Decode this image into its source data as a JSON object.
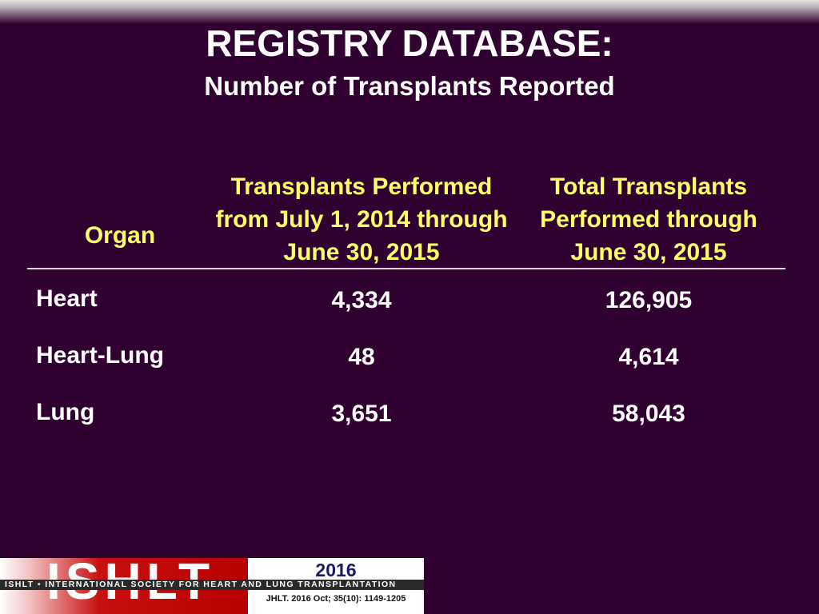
{
  "slide": {
    "title": "REGISTRY DATABASE:",
    "subtitle": "Number of Transplants Reported"
  },
  "table": {
    "headers": {
      "organ": "Organ",
      "period": "Transplants Performed from July 1, 2014 through June 30, 2015",
      "total": "Total Transplants Performed through June 30, 2015"
    },
    "rows": [
      {
        "organ": "Heart",
        "period": "4,334",
        "total": "126,905"
      },
      {
        "organ": "Heart-Lung",
        "period": "48",
        "total": "4,614"
      },
      {
        "organ": "Lung",
        "period": "3,651",
        "total": "58,043"
      }
    ]
  },
  "footer": {
    "logo_letters": "ISHLT",
    "year": "2016",
    "society": "ISHLT • INTERNATIONAL SOCIETY FOR HEART AND LUNG TRANSPLANTATION",
    "citation": "JHLT. 2016 Oct; 35(10): 1149-1205"
  },
  "colors": {
    "background": "#300030",
    "header_text": "#ffff66",
    "body_text": "#ffffff"
  }
}
